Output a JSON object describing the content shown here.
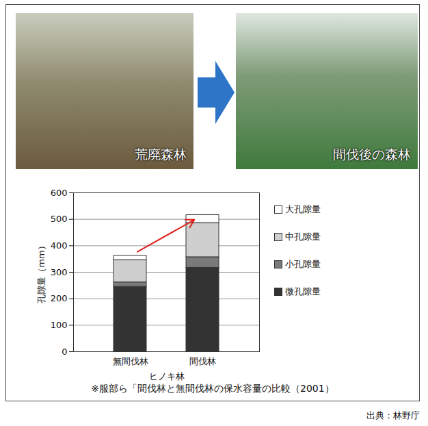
{
  "photos": {
    "before": "荒廃森林",
    "after": "間伐後の森林"
  },
  "caption": "※服部ら「間伐林と無間伐林の保水容量の比較（2001）",
  "source": "出典：林野庁",
  "chart_data": {
    "type": "bar",
    "stacked": true,
    "xlabel": "ヒノキ林",
    "ylabel": "孔隙量（mm）",
    "categories": [
      "無間伐林",
      "間伐林"
    ],
    "series": [
      {
        "name": "微孔隙量",
        "color": "#333333",
        "values": [
          245,
          317
        ]
      },
      {
        "name": "小孔隙量",
        "color": "#7a7a7a",
        "values": [
          17,
          40
        ]
      },
      {
        "name": "中孔隙量",
        "color": "#cfcfcf",
        "values": [
          84,
          129
        ]
      },
      {
        "name": "大孔隙量",
        "color": "#ffffff",
        "values": [
          16,
          30
        ]
      }
    ],
    "ylim": [
      0,
      600
    ],
    "yticks": [
      0,
      100,
      200,
      300,
      400,
      500,
      600
    ],
    "grid": true,
    "legend": "right"
  }
}
